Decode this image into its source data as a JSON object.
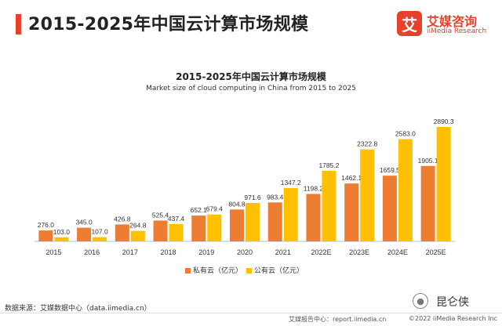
{
  "header": {
    "title": "2015-2025年中国云计算市场规模",
    "accent_color": "#e8412b"
  },
  "logo": {
    "mark": "艾",
    "name": "艾媒咨询",
    "sub": "iiMedia Research"
  },
  "chart_data": {
    "type": "bar",
    "title": "2015-2025年中国云计算市场规模",
    "subtitle": "Market size of cloud computing in China from 2015 to 2025",
    "categories": [
      "2015",
      "2016",
      "2017",
      "2018",
      "2019",
      "2020",
      "2021",
      "2022E",
      "2023E",
      "2024E",
      "2025E"
    ],
    "series": [
      {
        "name": "私有云（亿元）",
        "color": "#ed7d31",
        "values": [
          276.0,
          345.0,
          426.8,
          525.4,
          652.1,
          804.8,
          983.4,
          1198.2,
          1462.1,
          1659.5,
          1905.1
        ],
        "labels": [
          "276.0",
          "345.0",
          "426.8",
          "525.4",
          "652.1",
          "804.8",
          "983.4",
          "1198.2",
          "1462.1",
          "1659.5",
          "1905.1"
        ]
      },
      {
        "name": "公有云（亿元）",
        "color": "#ffc000",
        "values": [
          103.0,
          107.0,
          264.8,
          437.4,
          679.4,
          971.6,
          1347.2,
          1785.2,
          2322.8,
          2583.0,
          2890.3
        ],
        "labels": [
          "103.0",
          "107.0",
          "264.8",
          "437.4",
          "679.4",
          "971.6",
          "1347.2",
          "1785.2",
          "2322.8",
          "2583.0",
          "2890.3"
        ]
      }
    ],
    "ylim": [
      0,
      2890.3
    ],
    "grid": false,
    "legend_position": "bottom"
  },
  "footer": {
    "source": "数据来源：艾媒数据中心（data.iimedia.cn）",
    "wechat_name": "昆仑侠",
    "report_link": "艾媒报告中心：report.iimedia.cn",
    "copyright": "©2022 iiMedia Research Inc"
  }
}
